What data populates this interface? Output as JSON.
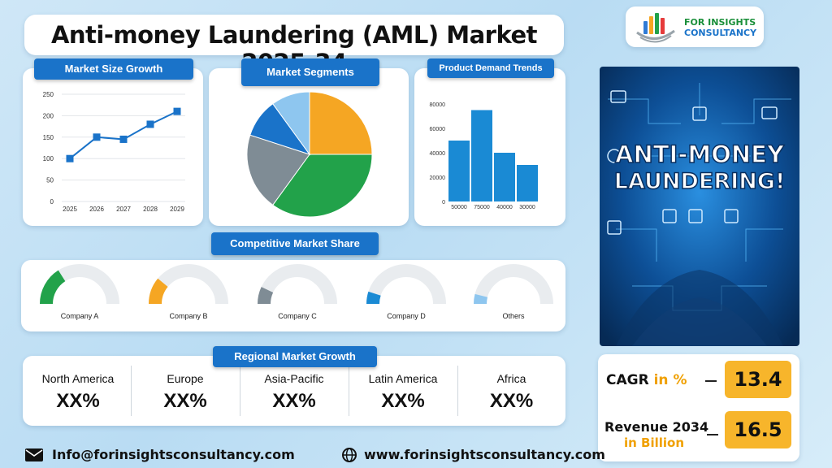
{
  "header": {
    "title": "Anti-money Laundering (AML)  Market 2025-34",
    "logo_line1": "FOR INSIGHTS",
    "logo_line2": "CONSULTANCY",
    "logo_colors": [
      "#2f7bd6",
      "#f5a623",
      "#22a24a",
      "#e63b3b"
    ]
  },
  "hero_image": {
    "text_line1": "ANTI-MONEY",
    "text_line2": "LAUNDERING!",
    "bg_color": "#0a3f7a"
  },
  "panels": {
    "market_size_title": "Market Size Growth",
    "segments_title": "Market Segments",
    "demand_title": "Product Demand Trends",
    "competitive_title": "Competitive Market Share",
    "regional_title": "Regional Market Growth"
  },
  "chart_data": [
    {
      "type": "line",
      "title": "Market Size Growth",
      "x": [
        "2025",
        "2026",
        "2027",
        "2028",
        "2029"
      ],
      "y": [
        100,
        150,
        145,
        180,
        210
      ],
      "ylim": [
        0,
        250
      ],
      "yticks": [
        "0",
        "50",
        "100",
        "150",
        "200",
        "250"
      ],
      "grid": true,
      "color": "#1a73c9"
    },
    {
      "type": "pie",
      "title": "Market Segments",
      "slices": [
        {
          "value": 25,
          "color": "#f5a623"
        },
        {
          "value": 35,
          "color": "#22a24a"
        },
        {
          "value": 20,
          "color": "#7f8c95"
        },
        {
          "value": 10,
          "color": "#1a73c9"
        },
        {
          "value": 10,
          "color": "#8ec6ef"
        }
      ]
    },
    {
      "type": "bar",
      "title": "Product Demand Trends",
      "categories": [
        "50000",
        "75000",
        "40000",
        "30000"
      ],
      "values": [
        50000,
        75000,
        40000,
        30000
      ],
      "ylim": [
        0,
        80000
      ],
      "yticks": [
        "0",
        "20000",
        "40000",
        "60000",
        "80000"
      ],
      "color": "#1a8ad4"
    },
    {
      "type": "gauge",
      "title": "Competitive Market Share",
      "items": [
        {
          "name": "Company A",
          "value": 0.32,
          "color": "#22a24a"
        },
        {
          "name": "Company B",
          "value": 0.22,
          "color": "#f5a623"
        },
        {
          "name": "Company C",
          "value": 0.14,
          "color": "#7f8c95"
        },
        {
          "name": "Company D",
          "value": 0.1,
          "color": "#1a8ad4"
        },
        {
          "name": "Others",
          "value": 0.08,
          "color": "#8ec6ef"
        }
      ],
      "track_color": "#e9ecef"
    }
  ],
  "regions": [
    {
      "name": "North America",
      "value": "XX%"
    },
    {
      "name": "Europe",
      "value": "XX%"
    },
    {
      "name": "Asia-Pacific",
      "value": "XX%"
    },
    {
      "name": "Latin America",
      "value": "XX%"
    },
    {
      "name": "Africa",
      "value": "XX%"
    }
  ],
  "metrics": {
    "cagr_label": "CAGR",
    "cagr_unit": "in %",
    "cagr_value": "13.4",
    "revenue_label": "Revenue 2034",
    "revenue_unit": "in Billion",
    "revenue_value": "16.5"
  },
  "footer": {
    "email": "Info@forinsightsconsultancy.com",
    "website": "www.forinsightsconsultancy.com"
  }
}
